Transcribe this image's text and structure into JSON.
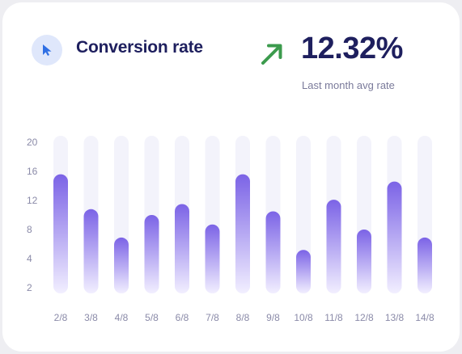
{
  "header": {
    "title": "Conversion rate",
    "rate_value": "12.32%",
    "rate_caption": "Last month avg rate"
  },
  "icons": {
    "cursor": "cursor-arrow-icon",
    "trend": "trend-up-arrow-icon"
  },
  "colors": {
    "bar_top": "#7b63e6",
    "bar_bottom": "#f2efff",
    "track": "#f3f3fb",
    "title_text": "#1e1f5e",
    "trend_arrow": "#3c9b4d",
    "cursor_icon": "#2f6fe4"
  },
  "chart_data": {
    "type": "bar",
    "categories": [
      "2/8",
      "3/8",
      "4/8",
      "5/8",
      "6/8",
      "7/8",
      "8/8",
      "9/8",
      "10/8",
      "11/8",
      "12/8",
      "13/8",
      "14/8"
    ],
    "values": [
      15.6,
      10.8,
      6.9,
      10.0,
      11.5,
      8.7,
      15.6,
      10.5,
      5.2,
      12.1,
      8.0,
      14.6,
      6.9
    ],
    "yticks": [
      2,
      4,
      8,
      12,
      16,
      20
    ],
    "ylim": [
      0,
      20
    ],
    "title": "",
    "xlabel": "",
    "ylabel": "",
    "grid": false
  }
}
